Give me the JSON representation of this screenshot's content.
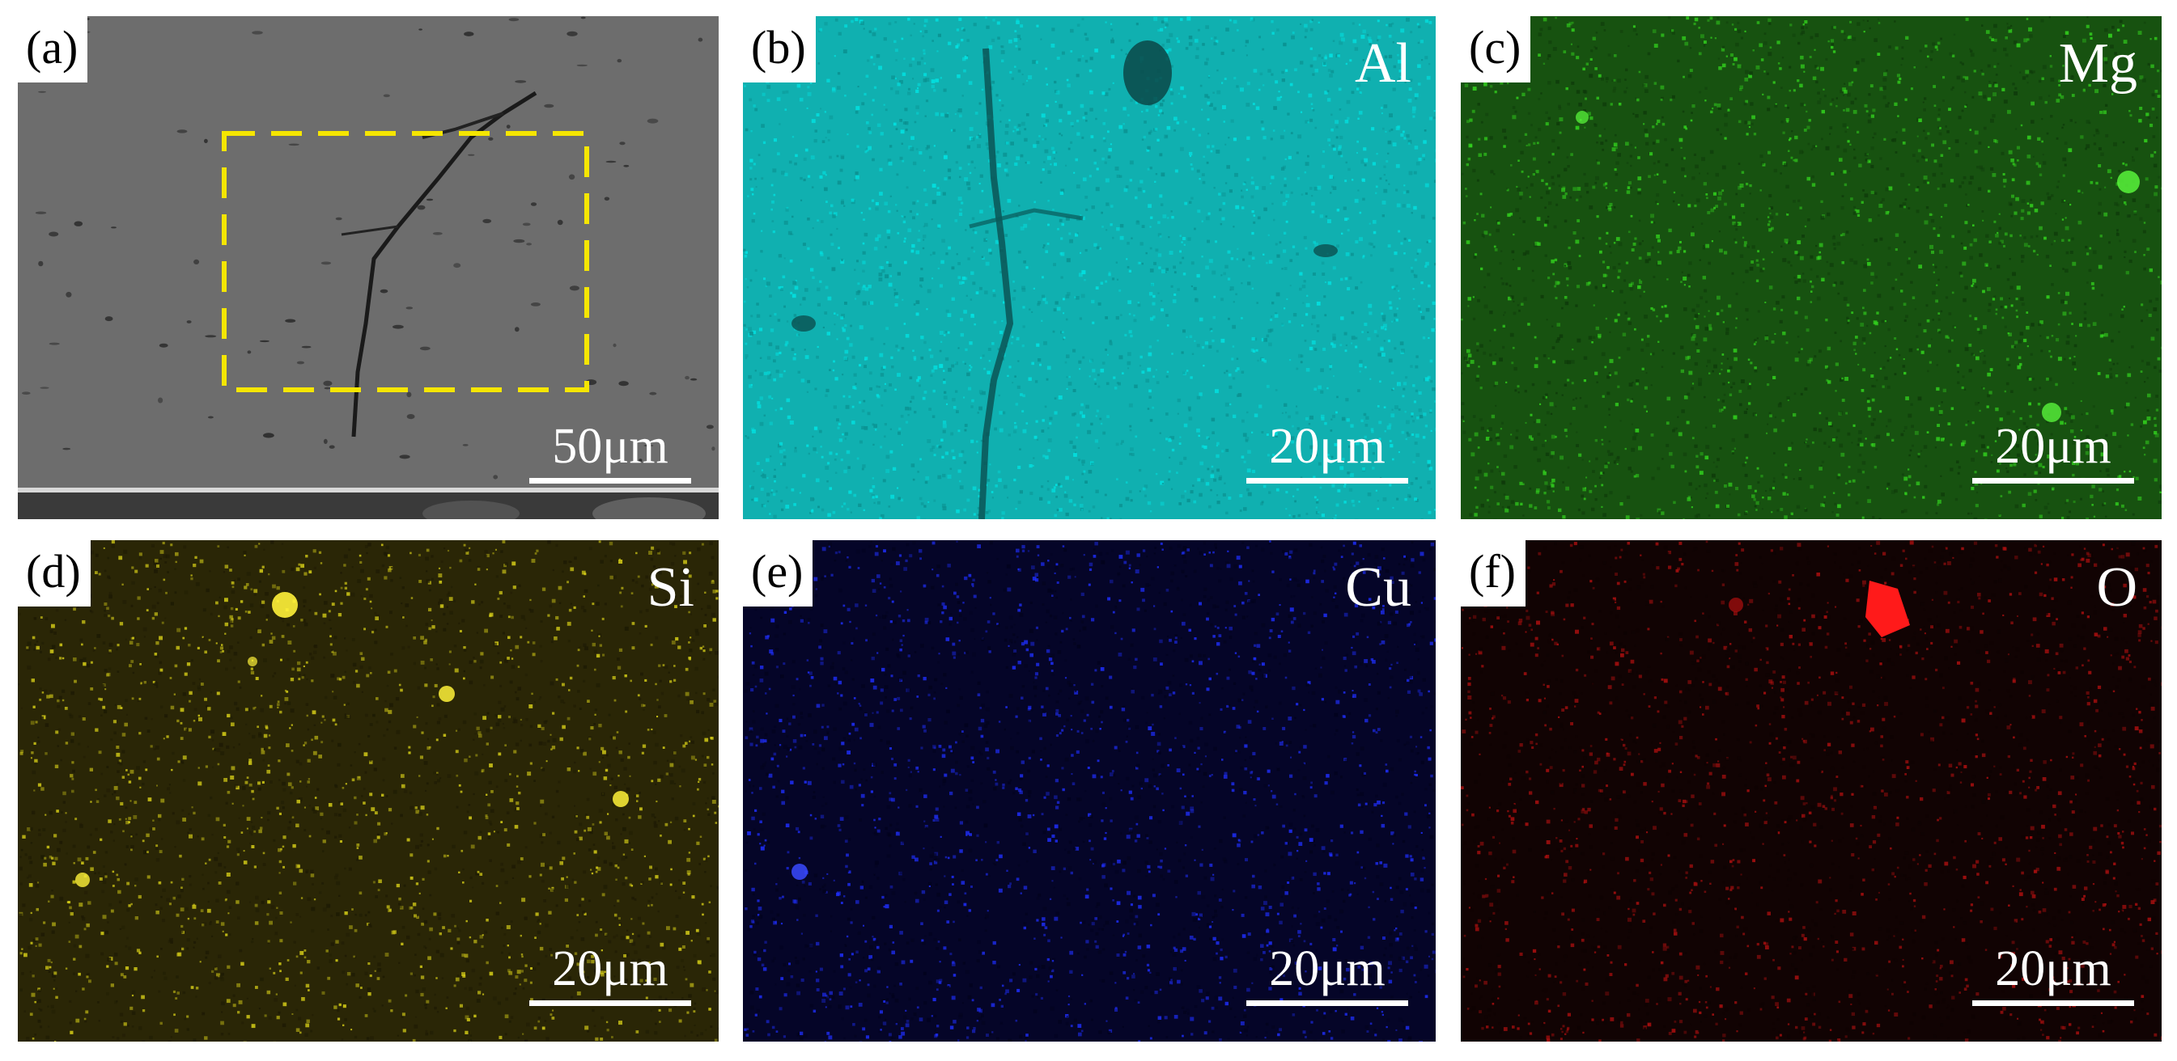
{
  "panels": [
    {
      "id": "a",
      "label": "(a)",
      "element": "",
      "scale": "50μm",
      "kind": "sem"
    },
    {
      "id": "b",
      "label": "(b)",
      "element": "Al",
      "scale": "20μm",
      "kind": "map",
      "color": "#00e6e6",
      "base": "#0a8f8f"
    },
    {
      "id": "c",
      "label": "(c)",
      "element": "Mg",
      "scale": "20μm",
      "kind": "map",
      "color": "#33d61e",
      "base": "#0e3a0a"
    },
    {
      "id": "d",
      "label": "(d)",
      "element": "Si",
      "scale": "20μm",
      "kind": "map",
      "color": "#d8d018",
      "base": "#1d1a04"
    },
    {
      "id": "e",
      "label": "(e)",
      "element": "Cu",
      "scale": "20μm",
      "kind": "map",
      "color": "#1f2fff",
      "base": "#03031d"
    },
    {
      "id": "f",
      "label": "(f)",
      "element": "O",
      "scale": "20μm",
      "kind": "map",
      "color": "#b01010",
      "base": "#0e0303"
    }
  ],
  "colors": {
    "roi_box": "#f5e600",
    "sem_matrix": "#6b6b6b"
  }
}
